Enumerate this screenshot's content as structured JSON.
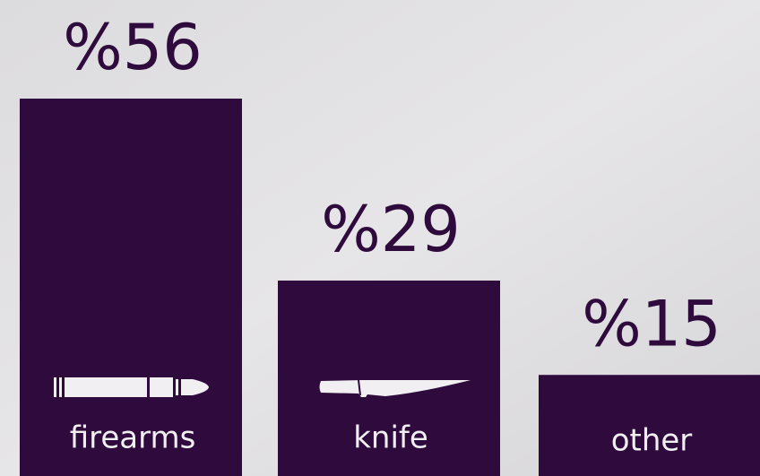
{
  "chart_data": {
    "type": "bar",
    "categories": [
      "firearms",
      "knife",
      "other"
    ],
    "values": [
      56,
      29,
      15
    ],
    "value_labels": [
      "%56",
      "%29",
      "%15"
    ],
    "color": "#2e0b3c"
  }
}
